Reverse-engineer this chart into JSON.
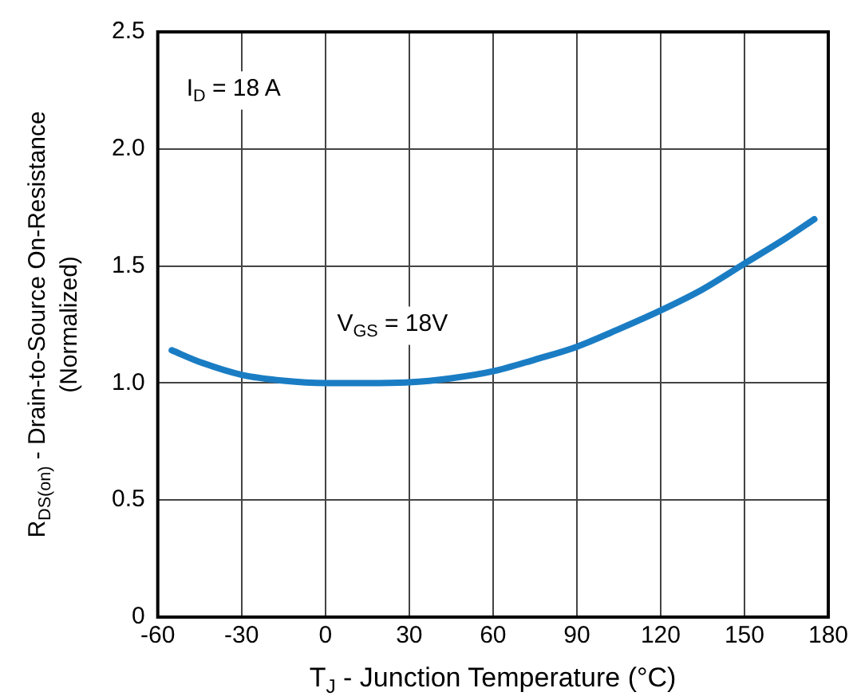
{
  "chart_data": {
    "type": "line",
    "xlabel": "T$_{J}$ - Junction Temperature (°C)",
    "ylabel": "R$_{DS(on)}$ - Drain-to-Source On-Resistance\n(Normalized)",
    "x": [
      -55,
      -45,
      -30,
      -15,
      0,
      15,
      30,
      45,
      60,
      75,
      90,
      105,
      120,
      135,
      150,
      165,
      175
    ],
    "series": [
      {
        "color": "#1a7dc4",
        "values": [
          1.14,
          1.09,
          1.035,
          1.01,
          1.0,
          1.0,
          1.003,
          1.02,
          1.05,
          1.1,
          1.155,
          1.23,
          1.31,
          1.4,
          1.51,
          1.62,
          1.7
        ]
      }
    ],
    "xlim": [
      -60,
      180
    ],
    "xticks": [
      -60,
      -30,
      0,
      30,
      60,
      90,
      120,
      150,
      180
    ],
    "ylim": [
      0,
      2.5
    ],
    "yticks": [
      {
        "value": 0,
        "label": "0"
      },
      {
        "value": 0.5,
        "label": "0.5"
      },
      {
        "value": 1,
        "label": "1.0"
      },
      {
        "value": 1.5,
        "label": "1.5"
      },
      {
        "value": 2,
        "label": "2.0"
      },
      {
        "value": 2.5,
        "label": "2.5"
      }
    ],
    "grid": true,
    "legend": false,
    "marker": "none",
    "line_style": "solid",
    "annotations": [
      "I$_{D}$ = 18 A",
      "V$_{GS}$ = 18V"
    ]
  }
}
